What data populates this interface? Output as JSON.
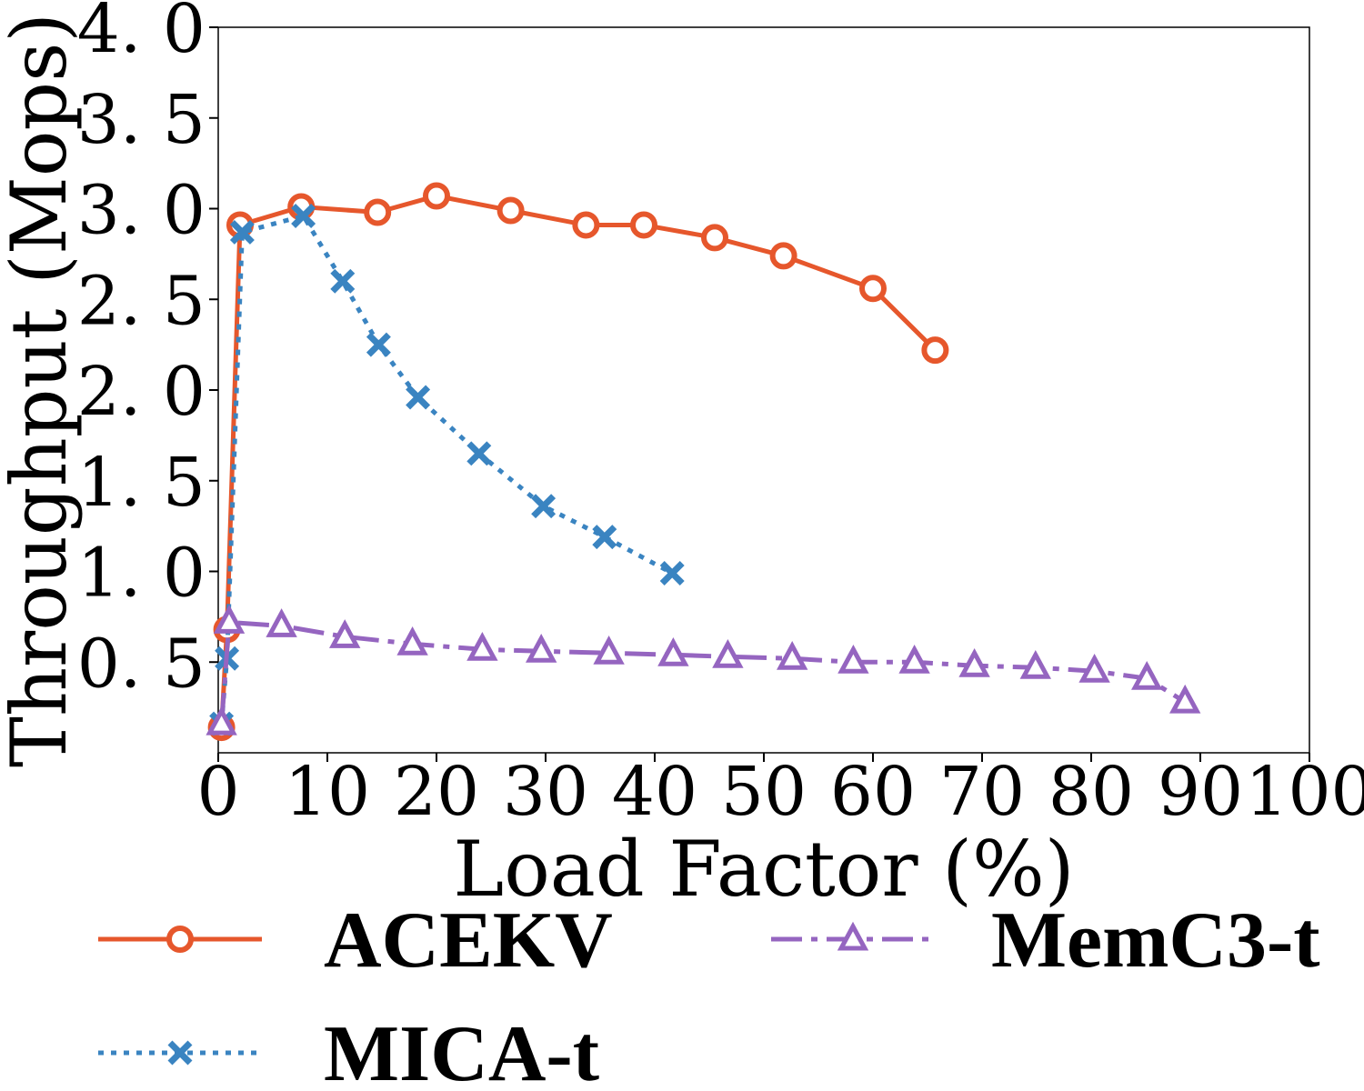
{
  "chart_data": {
    "type": "line",
    "xlabel": "Load Factor (%)",
    "ylabel": "Throughput (Mops)",
    "xlim": [
      0,
      100
    ],
    "ylim": [
      0.0,
      4.0
    ],
    "xticks": [
      "0",
      "10",
      "20",
      "30",
      "40",
      "50",
      "60",
      "70",
      "80",
      "90",
      "100"
    ],
    "yticks": [
      "0. 5",
      "1. 0",
      "1. 5",
      "2. 0",
      "2. 5",
      "3. 0",
      "3. 5",
      "4. 0"
    ],
    "grid": false,
    "legend_position": "bottom",
    "series": [
      {
        "name": "ACEKV",
        "color": "#e6572c",
        "marker": "circle-open",
        "linestyle": "solid",
        "x": [
          0.3,
          0.8,
          2.0,
          7.6,
          14.6,
          20.0,
          26.8,
          33.7,
          39.0,
          45.5,
          51.8,
          60.0,
          65.7
        ],
        "y": [
          0.14,
          0.68,
          2.91,
          3.01,
          2.98,
          3.07,
          2.99,
          2.91,
          2.91,
          2.84,
          2.74,
          2.56,
          2.22
        ]
      },
      {
        "name": "MICA-t",
        "color": "#3a84c1",
        "marker": "x",
        "linestyle": "dotted",
        "x": [
          0.3,
          0.8,
          2.2,
          7.8,
          11.4,
          14.7,
          18.3,
          23.9,
          29.8,
          35.4,
          41.6
        ],
        "y": [
          0.16,
          0.52,
          2.87,
          2.96,
          2.6,
          2.25,
          1.96,
          1.65,
          1.36,
          1.19,
          0.99
        ]
      },
      {
        "name": "MemC3-t",
        "color": "#9565c0",
        "marker": "triangle-open",
        "linestyle": "dashdot",
        "x": [
          0.3,
          1.0,
          5.8,
          11.6,
          17.8,
          24.2,
          29.6,
          35.8,
          41.7,
          46.7,
          52.6,
          58.2,
          63.8,
          69.3,
          74.9,
          80.3,
          85.1,
          88.6
        ],
        "y": [
          0.16,
          0.72,
          0.7,
          0.64,
          0.6,
          0.57,
          0.56,
          0.55,
          0.54,
          0.53,
          0.52,
          0.5,
          0.5,
          0.48,
          0.47,
          0.45,
          0.41,
          0.28
        ]
      }
    ]
  }
}
